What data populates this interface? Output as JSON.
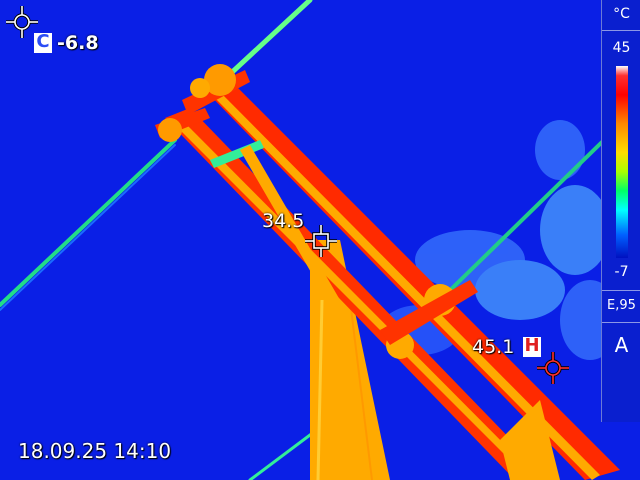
{
  "readings": {
    "cold_label": "C",
    "cold_value": "-6.8",
    "center_value": "34.5",
    "hot_label": "H",
    "hot_value": "45.1"
  },
  "timestamp": "18.09.25 14:10",
  "scale": {
    "unit": "°C",
    "max": "45",
    "min": "-7",
    "emissivity": "E,95",
    "mode": "A"
  },
  "palette": {
    "sky": "#0a1fe6",
    "tower_hot": "#ff2a00",
    "tower_warm": "#ffaa00",
    "cable": "#33ff99",
    "cloud": "#4aa0ff"
  }
}
